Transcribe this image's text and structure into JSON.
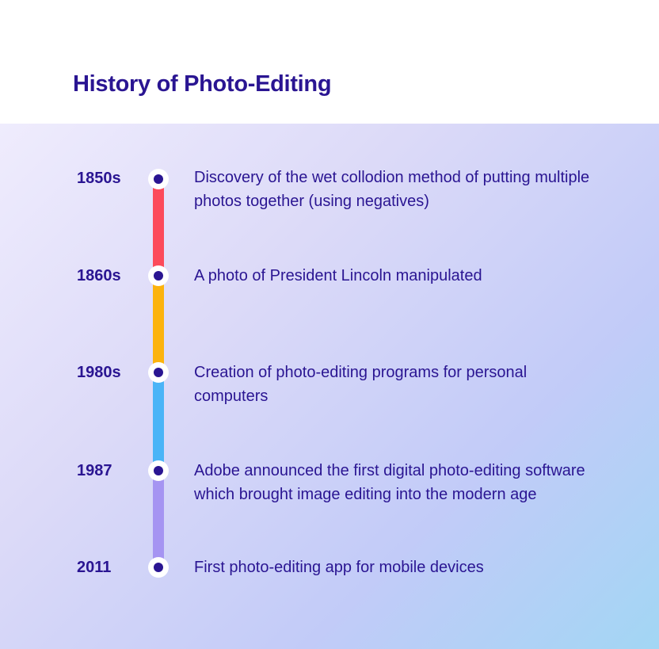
{
  "title": "History of Photo-Editing",
  "timeline": [
    {
      "year": "1850s",
      "text": "Discovery of the wet collodion method of putting multiple photos together (using negatives)"
    },
    {
      "year": "1860s",
      "text": "A photo of President Lincoln manipulated"
    },
    {
      "year": "1980s",
      "text": "Creation of photo-editing programs for personal computers"
    },
    {
      "year": "1987",
      "text": "Adobe announced the first digital photo-editing software which brought image editing into the modern age"
    },
    {
      "year": "2011",
      "text": "First photo-editing app for mobile devices"
    }
  ],
  "colors": {
    "text": "#2a1592",
    "segments": [
      "#fc4a5a",
      "#fcb30d",
      "#4ab4f7",
      "#a594f2"
    ]
  }
}
